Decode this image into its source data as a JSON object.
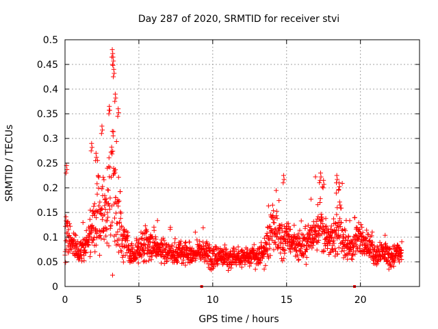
{
  "chart_data": {
    "type": "scatter",
    "title": "Day 287 of 2020, SRMTID for receiver stvi",
    "xlabel": "GPS time / hours",
    "ylabel": "SRMTID / TECUs",
    "xlim": [
      0,
      24.0
    ],
    "ylim": [
      0,
      0.5
    ],
    "xticks": [
      0,
      5,
      10,
      15,
      20
    ],
    "xtick_labels": [
      "0",
      "5",
      "10",
      "15",
      "20"
    ],
    "yticks": [
      0,
      0.05,
      0.1,
      0.15,
      0.2,
      0.25,
      0.3,
      0.35,
      0.4,
      0.45,
      0.5
    ],
    "ytick_labels": [
      "0",
      "0.05",
      "0.1",
      "0.15",
      "0.2",
      "0.25",
      "0.3",
      "0.35",
      "0.4",
      "0.45",
      "0.5"
    ],
    "grid": true,
    "marker": "plus",
    "color": "#ff0000",
    "x_data_start": 0.0,
    "x_data_end": 22.8,
    "series": [
      {
        "name": "SRMTID",
        "profile_x": [
          0.0,
          0.1,
          0.2,
          0.5,
          1.0,
          1.5,
          2.0,
          2.3,
          2.6,
          3.0,
          3.2,
          3.5,
          3.8,
          4.2,
          4.6,
          5.0,
          5.5,
          6.0,
          6.5,
          7.0,
          7.5,
          8.0,
          8.5,
          9.0,
          9.5,
          10.0,
          10.5,
          11.0,
          11.5,
          12.0,
          12.5,
          13.0,
          13.5,
          13.8,
          14.2,
          14.7,
          15.0,
          15.5,
          16.0,
          16.5,
          17.0,
          17.3,
          17.6,
          18.0,
          18.4,
          18.7,
          19.0,
          19.5,
          20.0,
          20.4,
          20.8,
          21.2,
          21.6,
          22.0,
          22.4,
          22.8
        ],
        "profile_center": [
          0.09,
          0.13,
          0.1,
          0.08,
          0.07,
          0.09,
          0.12,
          0.15,
          0.15,
          0.16,
          0.2,
          0.15,
          0.11,
          0.08,
          0.07,
          0.075,
          0.085,
          0.08,
          0.075,
          0.07,
          0.065,
          0.07,
          0.065,
          0.07,
          0.075,
          0.06,
          0.065,
          0.055,
          0.06,
          0.06,
          0.06,
          0.06,
          0.07,
          0.1,
          0.11,
          0.09,
          0.1,
          0.09,
          0.08,
          0.09,
          0.12,
          0.13,
          0.1,
          0.09,
          0.11,
          0.12,
          0.08,
          0.08,
          0.1,
          0.09,
          0.07,
          0.065,
          0.07,
          0.06,
          0.065,
          0.07
        ],
        "profile_spread": [
          0.05,
          0.1,
          0.05,
          0.04,
          0.04,
          0.05,
          0.09,
          0.12,
          0.12,
          0.15,
          0.22,
          0.13,
          0.07,
          0.04,
          0.035,
          0.045,
          0.045,
          0.04,
          0.035,
          0.035,
          0.03,
          0.03,
          0.03,
          0.03,
          0.04,
          0.035,
          0.035,
          0.03,
          0.03,
          0.03,
          0.03,
          0.03,
          0.04,
          0.06,
          0.06,
          0.07,
          0.05,
          0.04,
          0.04,
          0.05,
          0.07,
          0.08,
          0.05,
          0.04,
          0.06,
          0.08,
          0.04,
          0.04,
          0.05,
          0.04,
          0.035,
          0.03,
          0.035,
          0.035,
          0.035,
          0.04
        ],
        "peaks": [
          {
            "x": 0.1,
            "y": 0.245
          },
          {
            "x": 1.8,
            "y": 0.29
          },
          {
            "x": 2.1,
            "y": 0.27
          },
          {
            "x": 2.5,
            "y": 0.325
          },
          {
            "x": 3.0,
            "y": 0.365
          },
          {
            "x": 3.2,
            "y": 0.48
          },
          {
            "x": 3.25,
            "y": 0.465
          },
          {
            "x": 3.3,
            "y": 0.44
          },
          {
            "x": 3.4,
            "y": 0.39
          },
          {
            "x": 3.6,
            "y": 0.36
          },
          {
            "x": 14.8,
            "y": 0.225
          },
          {
            "x": 17.3,
            "y": 0.23
          },
          {
            "x": 17.5,
            "y": 0.215
          },
          {
            "x": 18.4,
            "y": 0.225
          },
          {
            "x": 18.55,
            "y": 0.21
          }
        ],
        "zero_markers_x": [
          9.25,
          19.6
        ],
        "point_count": 1800
      }
    ]
  }
}
